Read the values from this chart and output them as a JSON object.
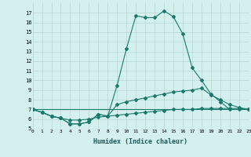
{
  "xlabel": "Humidex (Indice chaleur)",
  "line1_x": [
    0,
    1,
    2,
    3,
    4,
    5,
    6,
    7,
    8,
    9,
    10,
    11,
    12,
    13,
    14,
    15,
    16,
    17,
    18,
    19,
    20,
    21,
    22,
    23
  ],
  "line1_y": [
    7.0,
    6.7,
    6.3,
    6.1,
    5.5,
    5.5,
    5.7,
    6.5,
    6.3,
    9.5,
    13.3,
    16.7,
    16.5,
    16.5,
    17.2,
    16.6,
    14.8,
    11.3,
    10.0,
    8.6,
    7.8,
    7.0,
    7.0,
    7.0
  ],
  "line2_x": [
    0,
    1,
    2,
    3,
    4,
    5,
    6,
    7,
    8,
    9,
    10,
    11,
    12,
    13,
    14,
    15,
    16,
    17,
    18,
    19,
    20,
    21,
    22,
    23
  ],
  "line2_y": [
    7.0,
    6.7,
    6.3,
    6.1,
    5.5,
    5.5,
    5.7,
    6.5,
    6.3,
    7.5,
    7.8,
    8.0,
    8.2,
    8.4,
    8.6,
    8.8,
    8.9,
    9.0,
    9.2,
    8.5,
    8.0,
    7.5,
    7.2,
    7.0
  ],
  "line3_x": [
    0,
    1,
    2,
    3,
    4,
    5,
    6,
    7,
    8,
    9,
    10,
    11,
    12,
    13,
    14,
    15,
    16,
    17,
    18,
    19,
    20,
    21,
    22,
    23
  ],
  "line3_y": [
    7.0,
    6.7,
    6.3,
    6.1,
    5.9,
    5.9,
    6.0,
    6.2,
    6.3,
    6.4,
    6.5,
    6.6,
    6.7,
    6.8,
    6.9,
    7.0,
    7.0,
    7.0,
    7.1,
    7.1,
    7.1,
    7.1,
    7.1,
    7.0
  ],
  "line4_x": [
    0,
    23
  ],
  "line4_y": [
    7.0,
    7.0
  ],
  "ylim": [
    5,
    18
  ],
  "xlim": [
    0,
    23
  ],
  "yticks": [
    5,
    6,
    7,
    8,
    9,
    10,
    11,
    12,
    13,
    14,
    15,
    16,
    17
  ],
  "xticks": [
    0,
    1,
    2,
    3,
    4,
    5,
    6,
    7,
    8,
    9,
    10,
    11,
    12,
    13,
    14,
    15,
    16,
    17,
    18,
    19,
    20,
    21,
    22,
    23
  ],
  "line_color": "#1a7a6a",
  "bg_color": "#d4f0ee",
  "grid_color": "#b8d8d4"
}
